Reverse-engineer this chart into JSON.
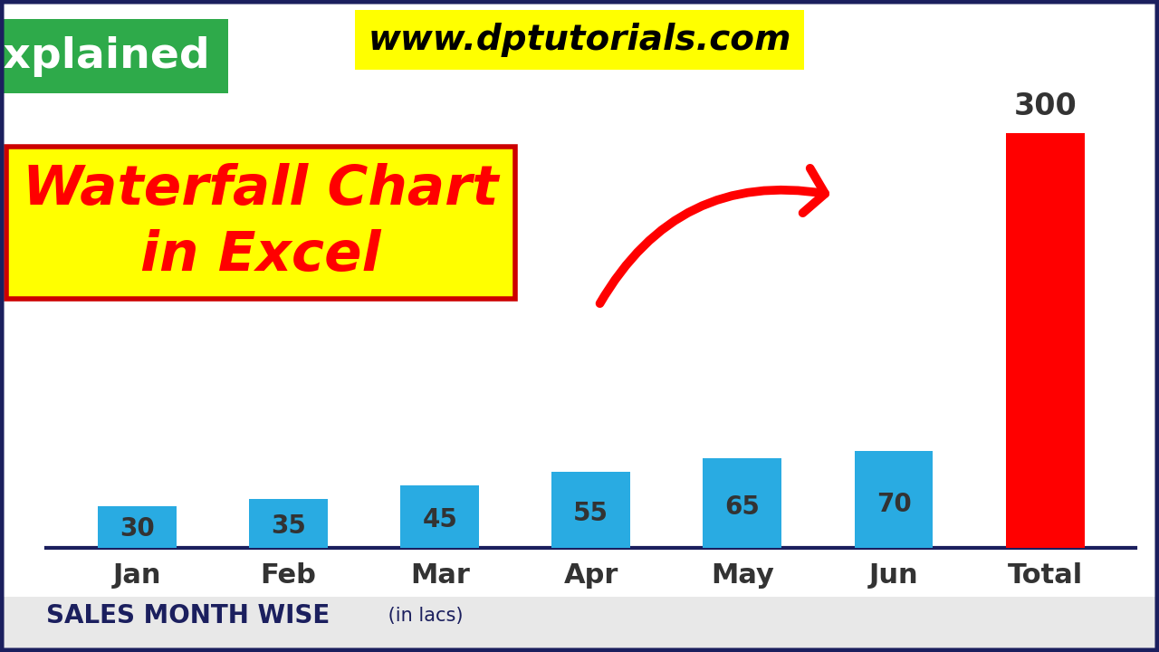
{
  "categories": [
    "Jan",
    "Feb",
    "Mar",
    "Apr",
    "May",
    "Jun",
    "Total"
  ],
  "values": [
    30,
    35,
    45,
    55,
    65,
    70,
    300
  ],
  "bar_colors": [
    "#29ABE2",
    "#29ABE2",
    "#29ABE2",
    "#29ABE2",
    "#29ABE2",
    "#29ABE2",
    "#FF0000"
  ],
  "title": "www.dptutorials.com",
  "xlabel_label": "SALES MONTH WISE",
  "xlabel_sub": " (in lacs)",
  "explained_text": "Explained",
  "explained_bg": "#2EAA4A",
  "waterfall_text_line1": "Waterfall Chart",
  "waterfall_text_line2": "in Excel",
  "waterfall_bg": "#FFFF00",
  "bg_color": "#FFFFFF",
  "border_color": "#1B1F5E",
  "bar_label_color": "#444444",
  "total_label_color": "#333333",
  "ylim": [
    0,
    330
  ],
  "bar_width": 0.52
}
